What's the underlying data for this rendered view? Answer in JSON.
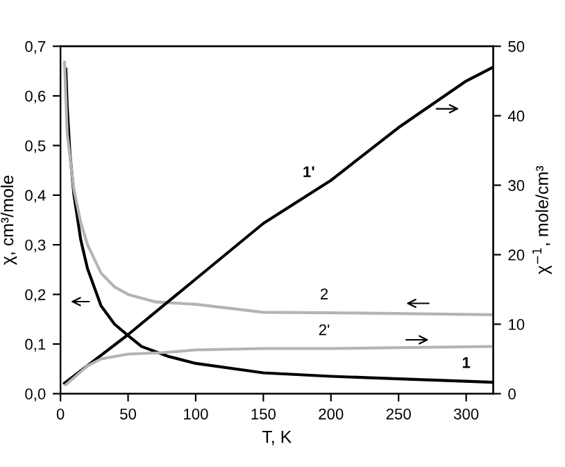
{
  "chart_data": {
    "type": "line",
    "xlabel": "T, K",
    "ylabel": "χ, cm³/mole",
    "y2label": "χ$^{−1}$, mole/cm³",
    "xlim": [
      0,
      320
    ],
    "xticks": [
      0,
      50,
      100,
      150,
      200,
      250,
      300
    ],
    "ylim": [
      0,
      0.7
    ],
    "yticks": [
      {
        "value": 0,
        "label": "0,0"
      },
      {
        "value": 0.1,
        "label": "0,1"
      },
      {
        "value": 0.2,
        "label": "0,2"
      },
      {
        "value": 0.3,
        "label": "0,3"
      },
      {
        "value": 0.4,
        "label": "0,4"
      },
      {
        "value": 0.5,
        "label": "0,5"
      },
      {
        "value": 0.6,
        "label": "0,6"
      },
      {
        "value": 0.7,
        "label": "0,7"
      }
    ],
    "y2lim": [
      0,
      50
    ],
    "y2ticks": [
      0,
      10,
      20,
      30,
      40,
      50
    ],
    "grid": false,
    "legend": false,
    "marker": "none",
    "line_style": "solid",
    "series": [
      {
        "name": "1",
        "color": "#000000",
        "x": [
          4,
          5,
          7,
          10,
          15,
          20,
          30,
          40,
          50,
          60,
          80,
          100,
          150,
          200,
          250,
          300,
          320
        ],
        "values": [
          0.654,
          0.58,
          0.485,
          0.4,
          0.31,
          0.252,
          0.177,
          0.14,
          0.117,
          0.095,
          0.075,
          0.061,
          0.042,
          0.035,
          0.03,
          0.025,
          0.023
        ]
      },
      {
        "name": "2",
        "color": "#b4b4b4",
        "x": [
          3,
          5,
          10,
          15,
          20,
          30,
          40,
          50,
          70,
          100,
          150,
          200,
          320
        ],
        "values": [
          0.668,
          0.523,
          0.411,
          0.345,
          0.3,
          0.243,
          0.215,
          0.2,
          0.185,
          0.18,
          0.164,
          0.163,
          0.159
        ]
      },
      {
        "name": "1ʹ",
        "color": "#000000",
        "axis": "y2",
        "x": [
          3,
          50,
          100,
          150,
          200,
          250,
          300,
          320
        ],
        "values": [
          1.5,
          8.5,
          16.5,
          24.5,
          30.7,
          38.3,
          45,
          47
        ]
      },
      {
        "name": "2ʹ",
        "color": "#b4b4b4",
        "axis": "y2",
        "x": [
          4,
          10,
          20,
          30,
          50,
          75,
          100,
          150,
          200,
          320
        ],
        "values": [
          1.3,
          2.3,
          4.0,
          5.0,
          5.7,
          5.9,
          6.3,
          6.5,
          6.5,
          6.8
        ]
      }
    ]
  }
}
